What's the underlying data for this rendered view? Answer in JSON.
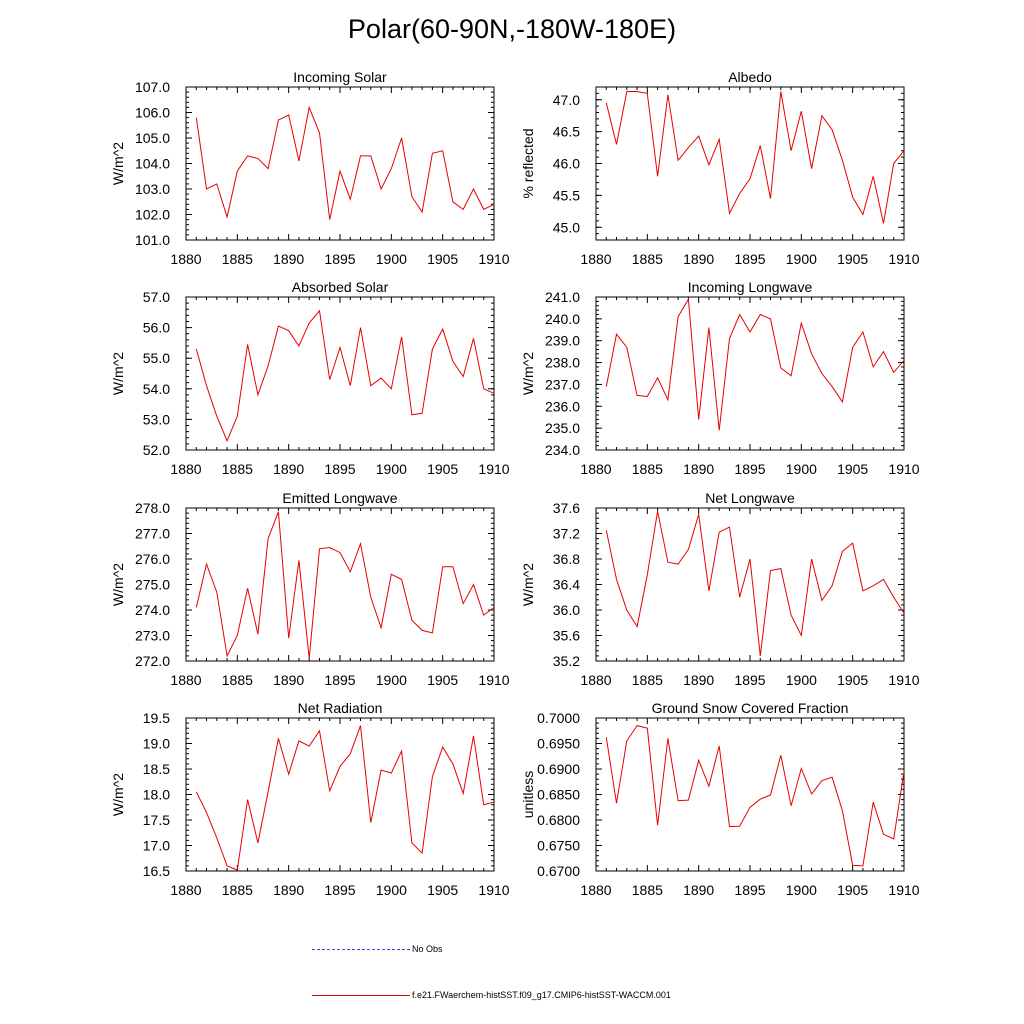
{
  "figure": {
    "title": "Polar(60-90N,-180W-180E)"
  },
  "legend": [
    {
      "label": "No Obs",
      "style": "dashed",
      "color": "#4a4ad0"
    },
    {
      "label": "f.e21.FWaerchem-histSST.f09_g17.CMIP6-histSST-WACCM.001",
      "style": "solid",
      "color": "#e60000"
    }
  ],
  "colors": {
    "series": "#e60000",
    "axis": "#000000"
  },
  "chart_data": [
    {
      "type": "line",
      "title": "Incoming Solar",
      "ylabel": "W/m^2",
      "xlim": [
        1880,
        1910
      ],
      "ylim": [
        101,
        107
      ],
      "xticks": [
        1880,
        1885,
        1890,
        1895,
        1900,
        1905,
        1910
      ],
      "yticks": [
        "101.0",
        "102.0",
        "103.0",
        "104.0",
        "105.0",
        "106.0",
        "107.0"
      ],
      "x": [
        1881,
        1882,
        1883,
        1884,
        1885,
        1886,
        1887,
        1888,
        1889,
        1890,
        1891,
        1892,
        1893,
        1894,
        1895,
        1896,
        1897,
        1898,
        1899,
        1900,
        1901,
        1902,
        1903,
        1904,
        1905,
        1906,
        1907,
        1908,
        1909,
        1910
      ],
      "series": [
        {
          "values": [
            105.8,
            103.0,
            103.2,
            101.9,
            103.7,
            104.3,
            104.2,
            103.8,
            105.7,
            105.9,
            104.1,
            106.2,
            105.2,
            101.8,
            103.7,
            102.6,
            104.3,
            104.3,
            103.0,
            103.8,
            105.0,
            102.7,
            102.1,
            104.4,
            104.5,
            102.5,
            102.2,
            103.0,
            102.2,
            102.4
          ]
        }
      ]
    },
    {
      "type": "line",
      "title": "Albedo",
      "ylabel": "% reflected",
      "xlim": [
        1880,
        1910
      ],
      "ylim": [
        44.8,
        47.2
      ],
      "xticks": [
        1880,
        1885,
        1890,
        1895,
        1900,
        1905,
        1910
      ],
      "yticks": [
        "45.0",
        "45.5",
        "46.0",
        "46.5",
        "47.0"
      ],
      "x": [
        1881,
        1882,
        1883,
        1884,
        1885,
        1886,
        1887,
        1888,
        1889,
        1890,
        1891,
        1892,
        1893,
        1894,
        1895,
        1896,
        1897,
        1898,
        1899,
        1900,
        1901,
        1902,
        1903,
        1904,
        1905,
        1906,
        1907,
        1908,
        1909,
        1910
      ],
      "series": [
        {
          "values": [
            46.95,
            46.3,
            47.13,
            47.13,
            47.1,
            45.8,
            47.08,
            46.05,
            46.25,
            46.43,
            45.98,
            46.38,
            45.22,
            45.53,
            45.76,
            46.28,
            45.45,
            47.13,
            46.2,
            46.82,
            45.92,
            46.75,
            46.53,
            46.05,
            45.47,
            45.2,
            45.8,
            45.06,
            46.0,
            46.2
          ]
        }
      ]
    },
    {
      "type": "line",
      "title": "Absorbed Solar",
      "ylabel": "W/m^2",
      "xlim": [
        1880,
        1910
      ],
      "ylim": [
        52,
        57
      ],
      "xticks": [
        1880,
        1885,
        1890,
        1895,
        1900,
        1905,
        1910
      ],
      "yticks": [
        "52.0",
        "53.0",
        "54.0",
        "55.0",
        "56.0",
        "57.0"
      ],
      "x": [
        1881,
        1882,
        1883,
        1884,
        1885,
        1886,
        1887,
        1888,
        1889,
        1890,
        1891,
        1892,
        1893,
        1894,
        1895,
        1896,
        1897,
        1898,
        1899,
        1900,
        1901,
        1902,
        1903,
        1904,
        1905,
        1906,
        1907,
        1908,
        1909,
        1910
      ],
      "series": [
        {
          "values": [
            55.3,
            54.1,
            53.1,
            52.3,
            53.1,
            55.45,
            53.8,
            54.75,
            56.05,
            55.9,
            55.4,
            56.15,
            56.55,
            54.3,
            55.35,
            54.1,
            56.0,
            54.1,
            54.35,
            54.0,
            55.7,
            53.15,
            53.2,
            55.3,
            55.95,
            54.9,
            54.4,
            55.65,
            54.0,
            53.85
          ]
        }
      ]
    },
    {
      "type": "line",
      "title": "Incoming Longwave",
      "ylabel": "W/m^2",
      "xlim": [
        1880,
        1910
      ],
      "ylim": [
        234,
        241
      ],
      "xticks": [
        1880,
        1885,
        1890,
        1895,
        1900,
        1905,
        1910
      ],
      "yticks": [
        "234.0",
        "235.0",
        "236.0",
        "237.0",
        "238.0",
        "239.0",
        "240.0",
        "241.0"
      ],
      "x": [
        1881,
        1882,
        1883,
        1884,
        1885,
        1886,
        1887,
        1888,
        1889,
        1890,
        1891,
        1892,
        1893,
        1894,
        1895,
        1896,
        1897,
        1898,
        1899,
        1900,
        1901,
        1902,
        1903,
        1904,
        1905,
        1906,
        1907,
        1908,
        1909,
        1910
      ],
      "series": [
        {
          "values": [
            236.9,
            239.3,
            238.7,
            236.5,
            236.45,
            237.3,
            236.3,
            240.1,
            240.9,
            235.4,
            239.6,
            234.9,
            239.1,
            240.2,
            239.4,
            240.2,
            240.0,
            237.75,
            237.4,
            239.8,
            238.4,
            237.5,
            236.9,
            236.2,
            238.7,
            239.4,
            237.8,
            238.5,
            237.55,
            238.1
          ]
        }
      ]
    },
    {
      "type": "line",
      "title": "Emitted Longwave",
      "ylabel": "W/m^2",
      "xlim": [
        1880,
        1910
      ],
      "ylim": [
        272,
        278
      ],
      "xticks": [
        1880,
        1885,
        1890,
        1895,
        1900,
        1905,
        1910
      ],
      "yticks": [
        "272.0",
        "273.0",
        "274.0",
        "275.0",
        "276.0",
        "277.0",
        "278.0"
      ],
      "x": [
        1881,
        1882,
        1883,
        1884,
        1885,
        1886,
        1887,
        1888,
        1889,
        1890,
        1891,
        1892,
        1893,
        1894,
        1895,
        1896,
        1897,
        1898,
        1899,
        1900,
        1901,
        1902,
        1903,
        1904,
        1905,
        1906,
        1907,
        1908,
        1909,
        1910
      ],
      "series": [
        {
          "values": [
            274.1,
            275.8,
            274.7,
            272.2,
            273.0,
            274.85,
            273.05,
            276.8,
            277.85,
            272.9,
            275.95,
            272.1,
            276.4,
            276.45,
            276.25,
            275.5,
            276.6,
            274.5,
            273.3,
            275.4,
            275.2,
            273.6,
            273.2,
            273.1,
            275.7,
            275.7,
            274.25,
            275.0,
            273.8,
            274.1
          ]
        }
      ]
    },
    {
      "type": "line",
      "title": "Net Longwave",
      "ylabel": "W/m^2",
      "xlim": [
        1880,
        1910
      ],
      "ylim": [
        35.2,
        37.6
      ],
      "xticks": [
        1880,
        1885,
        1890,
        1895,
        1900,
        1905,
        1910
      ],
      "yticks": [
        "35.2",
        "35.6",
        "36.0",
        "36.4",
        "36.8",
        "37.2",
        "37.6"
      ],
      "x": [
        1881,
        1882,
        1883,
        1884,
        1885,
        1886,
        1887,
        1888,
        1889,
        1890,
        1891,
        1892,
        1893,
        1894,
        1895,
        1896,
        1897,
        1898,
        1899,
        1900,
        1901,
        1902,
        1903,
        1904,
        1905,
        1906,
        1907,
        1908,
        1909,
        1910
      ],
      "series": [
        {
          "values": [
            37.25,
            36.48,
            36.0,
            35.74,
            36.55,
            37.55,
            36.75,
            36.72,
            36.95,
            37.5,
            36.3,
            37.22,
            37.3,
            36.2,
            36.8,
            35.28,
            36.62,
            36.65,
            35.92,
            35.6,
            36.8,
            36.15,
            36.38,
            36.92,
            37.05,
            36.3,
            36.38,
            36.48,
            36.2,
            35.95
          ]
        }
      ]
    },
    {
      "type": "line",
      "title": "Net Radiation",
      "ylabel": "W/m^2",
      "xlim": [
        1880,
        1910
      ],
      "ylim": [
        16.5,
        19.5
      ],
      "xticks": [
        1880,
        1885,
        1890,
        1895,
        1900,
        1905,
        1910
      ],
      "yticks": [
        "16.5",
        "17.0",
        "17.5",
        "18.0",
        "18.5",
        "19.0",
        "19.5"
      ],
      "x": [
        1881,
        1882,
        1883,
        1884,
        1885,
        1886,
        1887,
        1888,
        1889,
        1890,
        1891,
        1892,
        1893,
        1894,
        1895,
        1896,
        1897,
        1898,
        1899,
        1900,
        1901,
        1902,
        1903,
        1904,
        1905,
        1906,
        1907,
        1908,
        1909,
        1910
      ],
      "series": [
        {
          "values": [
            18.05,
            17.65,
            17.15,
            16.6,
            16.52,
            17.9,
            17.05,
            18.05,
            19.1,
            18.4,
            19.05,
            18.95,
            19.25,
            18.07,
            18.55,
            18.8,
            19.35,
            17.45,
            18.48,
            18.42,
            18.85,
            17.05,
            16.85,
            18.35,
            18.93,
            18.6,
            18.02,
            19.15,
            17.8,
            17.85
          ]
        }
      ]
    },
    {
      "type": "line",
      "title": "Ground Snow Covered Fraction",
      "ylabel": "unitless",
      "xlim": [
        1880,
        1910
      ],
      "ylim": [
        0.67,
        0.7
      ],
      "xticks": [
        1880,
        1885,
        1890,
        1895,
        1900,
        1905,
        1910
      ],
      "yticks": [
        "0.6700",
        "0.6750",
        "0.6800",
        "0.6850",
        "0.6900",
        "0.6950",
        "0.7000"
      ],
      "x": [
        1881,
        1882,
        1883,
        1884,
        1885,
        1886,
        1887,
        1888,
        1889,
        1890,
        1891,
        1892,
        1893,
        1894,
        1895,
        1896,
        1897,
        1898,
        1899,
        1900,
        1901,
        1902,
        1903,
        1904,
        1905,
        1906,
        1907,
        1908,
        1909,
        1910
      ],
      "series": [
        {
          "values": [
            0.6962,
            0.6833,
            0.6955,
            0.6985,
            0.698,
            0.679,
            0.696,
            0.6838,
            0.6839,
            0.6917,
            0.6866,
            0.6945,
            0.6787,
            0.6788,
            0.6825,
            0.6841,
            0.6849,
            0.6927,
            0.6828,
            0.6901,
            0.6851,
            0.6877,
            0.6884,
            0.6818,
            0.6711,
            0.671,
            0.6835,
            0.6772,
            0.6763,
            0.6895
          ]
        }
      ]
    }
  ]
}
